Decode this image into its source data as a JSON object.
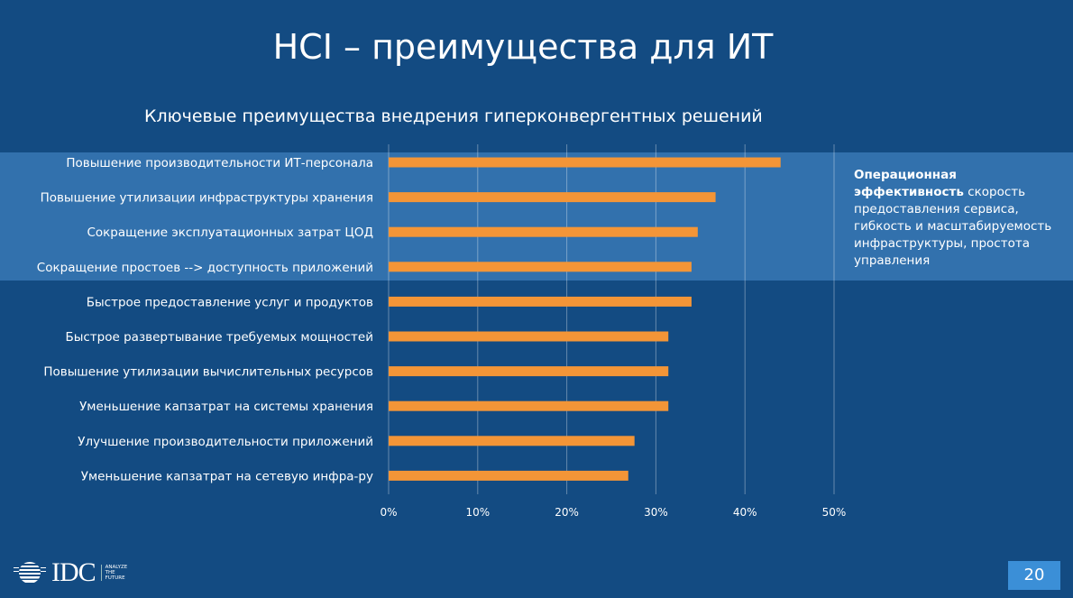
{
  "slide": {
    "title": "HCI – преимущества для ИТ",
    "page_number": "20",
    "note_bold": "Операционная эффективность",
    "note_text": " скорость предоставления сервиса, гибкость и масштабируемость инфраструктуры, простота управления",
    "logo": {
      "text": "IDC",
      "tagline": [
        "ANALYZE",
        "THE",
        "FUTURE"
      ]
    }
  },
  "colors": {
    "background": "#134b82",
    "highlight": "#3271ad",
    "bar": "#f39537"
  },
  "chart_data": {
    "type": "bar",
    "orientation": "horizontal",
    "title": "Ключевые преимущества внедрения гиперконвергентных решений",
    "categories": [
      "Повышение производительности ИТ-персонала",
      "Повышение утилизации инфраструктуры хранения",
      "Сокращение эксплуатационных затрат ЦОД",
      "Сокращение простоев --> доступность приложений",
      "Быстрое предоставление услуг и продуктов",
      "Быстрое развертывание требуемых мощностей",
      "Повышение утилизации вычислительных ресурсов",
      "Уменьшение капзатрат на системы хранения",
      "Улучшение производительности приложений",
      "Уменьшение капзатрат на сетевую инфра-ру"
    ],
    "values": [
      44.0,
      36.7,
      34.7,
      34.0,
      34.0,
      31.4,
      31.4,
      31.4,
      27.6,
      26.9
    ],
    "unit": "%",
    "xlim": [
      0,
      50
    ],
    "xticks": [
      "0%",
      "10%",
      "20%",
      "30%",
      "40%",
      "50%"
    ],
    "grid": true,
    "highlighted_categories": [
      0,
      1,
      2,
      3
    ]
  }
}
